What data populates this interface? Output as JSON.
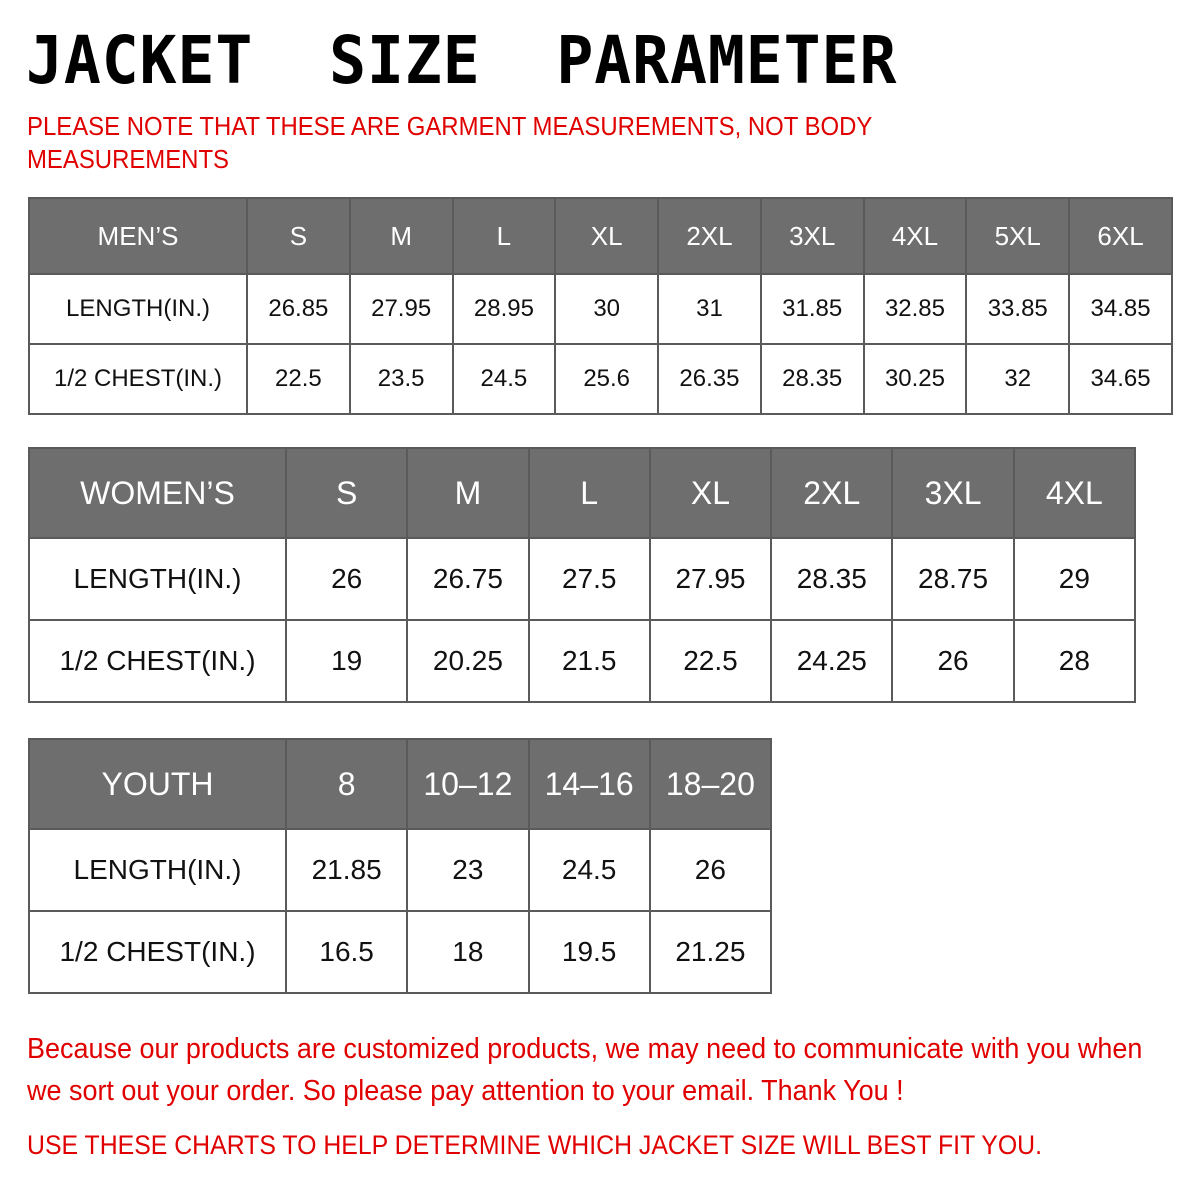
{
  "title": "JACKET  SIZE  PARAMETER",
  "note": "PLEASE NOTE THAT THESE ARE GARMENT MEASUREMENTS, NOT BODY MEASUREMENTS",
  "colors": {
    "accent_red": "#e00000",
    "header_bg": "#6e6e6e",
    "border": "#5a5a5a"
  },
  "tables": {
    "men": {
      "header": [
        "MEN’S",
        "S",
        "M",
        "L",
        "XL",
        "2XL",
        "3XL",
        "4XL",
        "5XL",
        "6XL"
      ],
      "rows": [
        [
          "LENGTH(IN.)",
          "26.85",
          "27.95",
          "28.95",
          "30",
          "31",
          "31.85",
          "32.85",
          "33.85",
          "34.85"
        ],
        [
          "1/2 CHEST(IN.)",
          "22.5",
          "23.5",
          "24.5",
          "25.6",
          "26.35",
          "28.35",
          "30.25",
          "32",
          "34.65"
        ]
      ]
    },
    "women": {
      "header": [
        "WOMEN’S",
        "S",
        "M",
        "L",
        "XL",
        "2XL",
        "3XL",
        "4XL"
      ],
      "rows": [
        [
          "LENGTH(IN.)",
          "26",
          "26.75",
          "27.5",
          "27.95",
          "28.35",
          "28.75",
          "29"
        ],
        [
          "1/2 CHEST(IN.)",
          "19",
          "20.25",
          "21.5",
          "22.5",
          "24.25",
          "26",
          "28"
        ]
      ]
    },
    "youth": {
      "header": [
        "YOUTH",
        "8",
        "10–12",
        "14–16",
        "18–20"
      ],
      "rows": [
        [
          "LENGTH(IN.)",
          "21.85",
          "23",
          "24.5",
          "26"
        ],
        [
          "1/2 CHEST(IN.)",
          "16.5",
          "18",
          "19.5",
          "21.25"
        ]
      ]
    }
  },
  "footer": {
    "message": "Because our products are customized products, we may need to communicate with you when we sort out your order. So please pay attention to your email. Thank You !",
    "advice": "USE THESE CHARTS TO HELP DETERMINE WHICH JACKET SIZE WILL BEST FIT YOU."
  }
}
